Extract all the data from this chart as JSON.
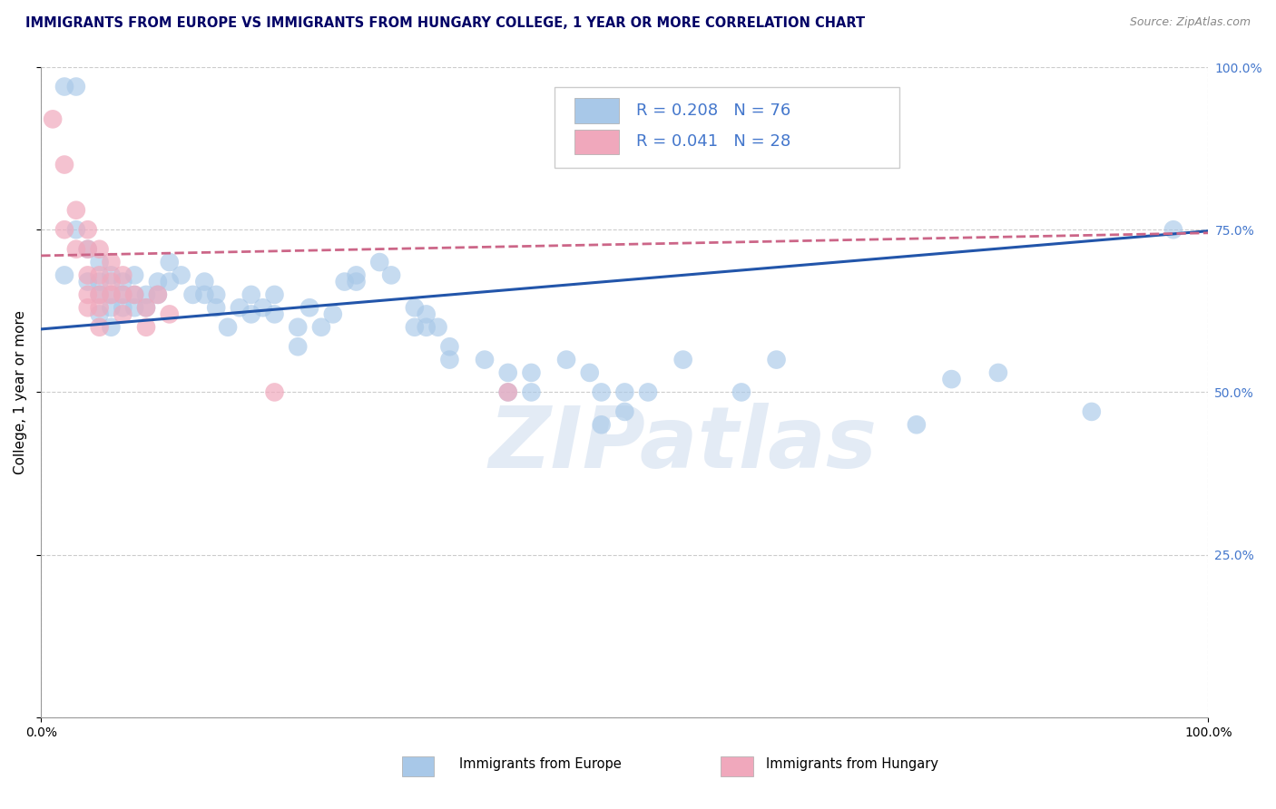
{
  "title": "IMMIGRANTS FROM EUROPE VS IMMIGRANTS FROM HUNGARY COLLEGE, 1 YEAR OR MORE CORRELATION CHART",
  "source_text": "Source: ZipAtlas.com",
  "ylabel": "College, 1 year or more",
  "xlim": [
    0,
    1.0
  ],
  "ylim": [
    0,
    1.0
  ],
  "blue_R": 0.208,
  "blue_N": 76,
  "pink_R": 0.041,
  "pink_N": 28,
  "legend_label_blue": "Immigrants from Europe",
  "legend_label_pink": "Immigrants from Hungary",
  "blue_color": "#a8c8e8",
  "pink_color": "#f0a8bc",
  "blue_line_color": "#2255aa",
  "pink_line_color": "#cc6688",
  "watermark": "ZIPatlas",
  "blue_line": [
    0.0,
    0.597,
    1.0,
    0.748
  ],
  "pink_line": [
    0.0,
    0.71,
    1.0,
    0.745
  ],
  "blue_scatter": [
    [
      0.02,
      0.97
    ],
    [
      0.03,
      0.97
    ],
    [
      0.02,
      0.68
    ],
    [
      0.03,
      0.75
    ],
    [
      0.04,
      0.72
    ],
    [
      0.04,
      0.67
    ],
    [
      0.05,
      0.7
    ],
    [
      0.05,
      0.67
    ],
    [
      0.05,
      0.65
    ],
    [
      0.05,
      0.62
    ],
    [
      0.06,
      0.68
    ],
    [
      0.06,
      0.65
    ],
    [
      0.06,
      0.63
    ],
    [
      0.06,
      0.6
    ],
    [
      0.07,
      0.67
    ],
    [
      0.07,
      0.65
    ],
    [
      0.07,
      0.63
    ],
    [
      0.08,
      0.68
    ],
    [
      0.08,
      0.65
    ],
    [
      0.08,
      0.63
    ],
    [
      0.09,
      0.65
    ],
    [
      0.09,
      0.63
    ],
    [
      0.1,
      0.67
    ],
    [
      0.1,
      0.65
    ],
    [
      0.11,
      0.7
    ],
    [
      0.11,
      0.67
    ],
    [
      0.12,
      0.68
    ],
    [
      0.13,
      0.65
    ],
    [
      0.14,
      0.67
    ],
    [
      0.14,
      0.65
    ],
    [
      0.15,
      0.65
    ],
    [
      0.15,
      0.63
    ],
    [
      0.16,
      0.6
    ],
    [
      0.17,
      0.63
    ],
    [
      0.18,
      0.65
    ],
    [
      0.18,
      0.62
    ],
    [
      0.19,
      0.63
    ],
    [
      0.2,
      0.65
    ],
    [
      0.2,
      0.62
    ],
    [
      0.22,
      0.6
    ],
    [
      0.22,
      0.57
    ],
    [
      0.23,
      0.63
    ],
    [
      0.24,
      0.6
    ],
    [
      0.25,
      0.62
    ],
    [
      0.26,
      0.67
    ],
    [
      0.27,
      0.68
    ],
    [
      0.27,
      0.67
    ],
    [
      0.29,
      0.7
    ],
    [
      0.3,
      0.68
    ],
    [
      0.32,
      0.63
    ],
    [
      0.32,
      0.6
    ],
    [
      0.33,
      0.62
    ],
    [
      0.33,
      0.6
    ],
    [
      0.34,
      0.6
    ],
    [
      0.35,
      0.57
    ],
    [
      0.35,
      0.55
    ],
    [
      0.38,
      0.55
    ],
    [
      0.4,
      0.53
    ],
    [
      0.4,
      0.5
    ],
    [
      0.42,
      0.53
    ],
    [
      0.42,
      0.5
    ],
    [
      0.45,
      0.55
    ],
    [
      0.47,
      0.53
    ],
    [
      0.48,
      0.45
    ],
    [
      0.48,
      0.5
    ],
    [
      0.5,
      0.47
    ],
    [
      0.5,
      0.5
    ],
    [
      0.52,
      0.5
    ],
    [
      0.55,
      0.55
    ],
    [
      0.6,
      0.5
    ],
    [
      0.63,
      0.55
    ],
    [
      0.75,
      0.45
    ],
    [
      0.78,
      0.52
    ],
    [
      0.82,
      0.53
    ],
    [
      0.9,
      0.47
    ],
    [
      0.97,
      0.75
    ]
  ],
  "pink_scatter": [
    [
      0.01,
      0.92
    ],
    [
      0.02,
      0.85
    ],
    [
      0.02,
      0.75
    ],
    [
      0.03,
      0.78
    ],
    [
      0.03,
      0.72
    ],
    [
      0.04,
      0.75
    ],
    [
      0.04,
      0.72
    ],
    [
      0.04,
      0.68
    ],
    [
      0.04,
      0.65
    ],
    [
      0.04,
      0.63
    ],
    [
      0.05,
      0.72
    ],
    [
      0.05,
      0.68
    ],
    [
      0.05,
      0.65
    ],
    [
      0.05,
      0.63
    ],
    [
      0.05,
      0.6
    ],
    [
      0.06,
      0.7
    ],
    [
      0.06,
      0.67
    ],
    [
      0.06,
      0.65
    ],
    [
      0.07,
      0.68
    ],
    [
      0.07,
      0.65
    ],
    [
      0.07,
      0.62
    ],
    [
      0.08,
      0.65
    ],
    [
      0.09,
      0.63
    ],
    [
      0.09,
      0.6
    ],
    [
      0.1,
      0.65
    ],
    [
      0.11,
      0.62
    ],
    [
      0.2,
      0.5
    ],
    [
      0.4,
      0.5
    ]
  ],
  "title_fontsize": 10.5,
  "axis_label_fontsize": 11,
  "tick_fontsize": 10,
  "right_tick_color": "#4477cc",
  "title_color": "#000066"
}
